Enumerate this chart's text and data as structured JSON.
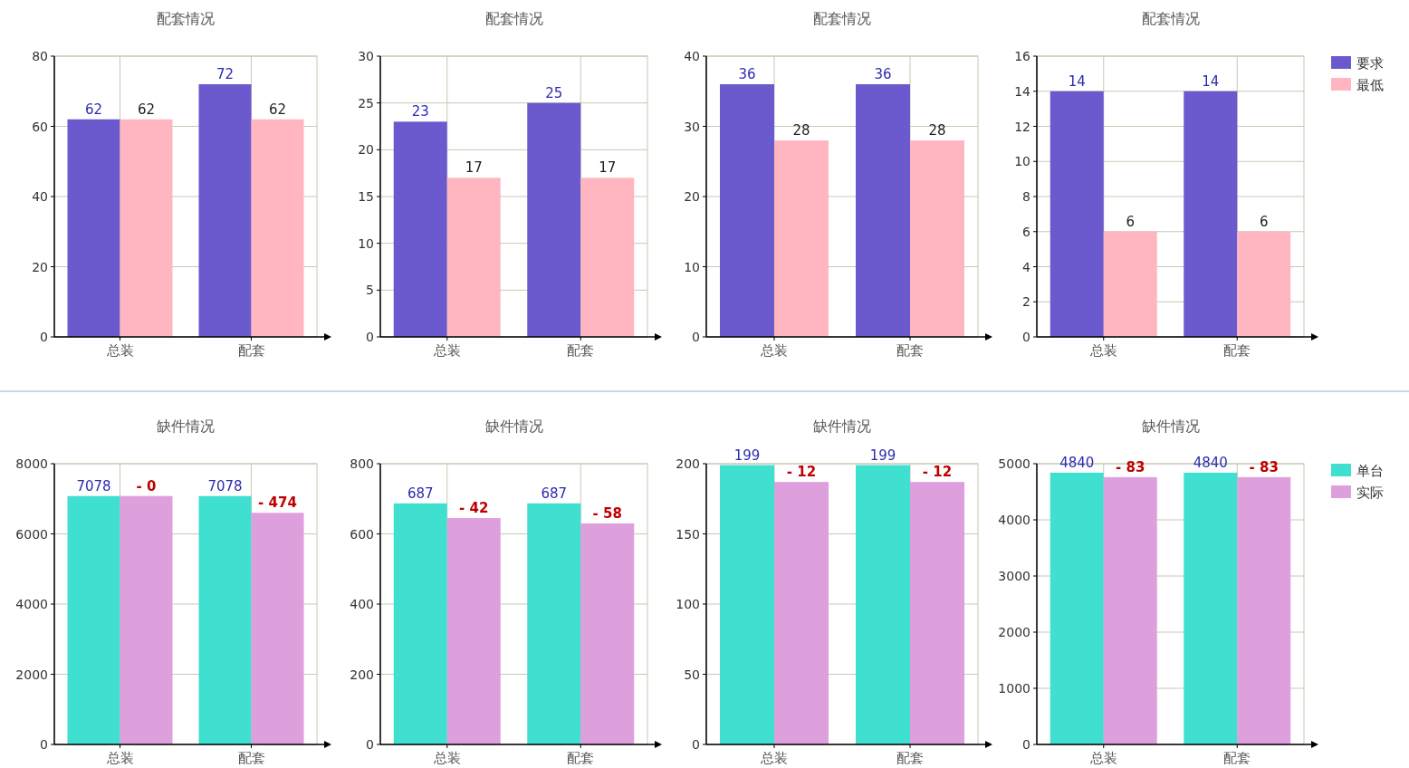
{
  "chart_data": [
    {
      "type": "bar",
      "title": "配套情况",
      "categories": [
        "总装",
        "配套"
      ],
      "ylim": [
        0,
        80
      ],
      "yticks": [
        0,
        20,
        40,
        60,
        80
      ],
      "grid": true,
      "data_labels": true,
      "legend": false,
      "series": [
        {
          "color": "#6a5acd",
          "values": [
            62,
            72
          ]
        },
        {
          "color": "#ffb6c1",
          "values": [
            62,
            62
          ]
        }
      ]
    },
    {
      "type": "bar",
      "title": "配套情况",
      "categories": [
        "总装",
        "配套"
      ],
      "ylim": [
        0,
        30
      ],
      "yticks": [
        0,
        5,
        10,
        15,
        20,
        25,
        30
      ],
      "grid": true,
      "data_labels": true,
      "legend": false,
      "series": [
        {
          "color": "#6a5acd",
          "values": [
            23,
            25
          ]
        },
        {
          "color": "#ffb6c1",
          "values": [
            17,
            17
          ]
        }
      ]
    },
    {
      "type": "bar",
      "title": "配套情况",
      "categories": [
        "总装",
        "配套"
      ],
      "ylim": [
        0,
        40
      ],
      "yticks": [
        0,
        10,
        20,
        30,
        40
      ],
      "grid": true,
      "data_labels": true,
      "legend": false,
      "series": [
        {
          "color": "#6a5acd",
          "values": [
            36,
            36
          ]
        },
        {
          "color": "#ffb6c1",
          "values": [
            28,
            28
          ]
        }
      ]
    },
    {
      "type": "bar",
      "title": "配套情况",
      "categories": [
        "总装",
        "配套"
      ],
      "ylim": [
        0,
        16
      ],
      "yticks": [
        0,
        2,
        4,
        6,
        8,
        10,
        12,
        14,
        16
      ],
      "grid": true,
      "data_labels": true,
      "legend": "right",
      "series": [
        {
          "name": "要求",
          "color": "#6a5acd",
          "values": [
            14,
            14
          ]
        },
        {
          "name": "最低",
          "color": "#ffb6c1",
          "values": [
            6,
            6
          ]
        }
      ]
    },
    {
      "type": "bar",
      "title": "缺件情况",
      "categories": [
        "总装",
        "配套"
      ],
      "ylim": [
        0,
        8000
      ],
      "yticks": [
        0,
        2000,
        4000,
        6000,
        8000
      ],
      "grid": true,
      "legend": false,
      "series": [
        {
          "color": "#40e0d0",
          "values": [
            7078,
            7078
          ],
          "value_labels": [
            "7078",
            "7078"
          ]
        },
        {
          "color": "#dda0dd",
          "values": [
            7080,
            6600
          ]
        }
      ],
      "annotations": [
        {
          "text": "- 0",
          "x": "总装",
          "y": 7080
        },
        {
          "text": "- 474",
          "x": "配套",
          "y": 6600
        }
      ]
    },
    {
      "type": "bar",
      "title": "缺件情况",
      "categories": [
        "总装",
        "配套"
      ],
      "ylim": [
        0,
        800
      ],
      "yticks": [
        0,
        200,
        400,
        600,
        800
      ],
      "grid": true,
      "legend": false,
      "series": [
        {
          "color": "#40e0d0",
          "values": [
            687,
            687
          ],
          "value_labels": [
            "687",
            "687"
          ]
        },
        {
          "color": "#dda0dd",
          "values": [
            645,
            630
          ]
        }
      ],
      "annotations": [
        {
          "text": "- 42",
          "x": "总装",
          "y": 645
        },
        {
          "text": "- 58",
          "x": "配套",
          "y": 630
        }
      ]
    },
    {
      "type": "bar",
      "title": "缺件情况",
      "categories": [
        "总装",
        "配套"
      ],
      "ylim": [
        0,
        200
      ],
      "yticks": [
        0,
        50,
        100,
        150,
        200
      ],
      "grid": true,
      "legend": false,
      "series": [
        {
          "color": "#40e0d0",
          "values": [
            199,
            199
          ],
          "value_labels": [
            "199",
            "199"
          ]
        },
        {
          "color": "#dda0dd",
          "values": [
            187,
            187
          ]
        }
      ],
      "annotations": [
        {
          "text": "- 12",
          "x": "总装",
          "y": 187
        },
        {
          "text": "- 12",
          "x": "配套",
          "y": 187
        }
      ]
    },
    {
      "type": "bar",
      "title": "缺件情况",
      "categories": [
        "总装",
        "配套"
      ],
      "ylim": [
        0,
        5000
      ],
      "yticks": [
        0,
        1000,
        2000,
        3000,
        4000,
        5000
      ],
      "grid": true,
      "legend": "right",
      "series": [
        {
          "name": "单台",
          "color": "#40e0d0",
          "values": [
            4840,
            4840
          ],
          "value_labels": [
            "4840",
            "4840"
          ]
        },
        {
          "name": "实际",
          "color": "#dda0dd",
          "values": [
            4760,
            4760
          ]
        }
      ],
      "annotations": [
        {
          "text": "- 83",
          "x": "总装",
          "y": 4760
        },
        {
          "text": "- 83",
          "x": "配套",
          "y": 4760
        }
      ]
    }
  ]
}
